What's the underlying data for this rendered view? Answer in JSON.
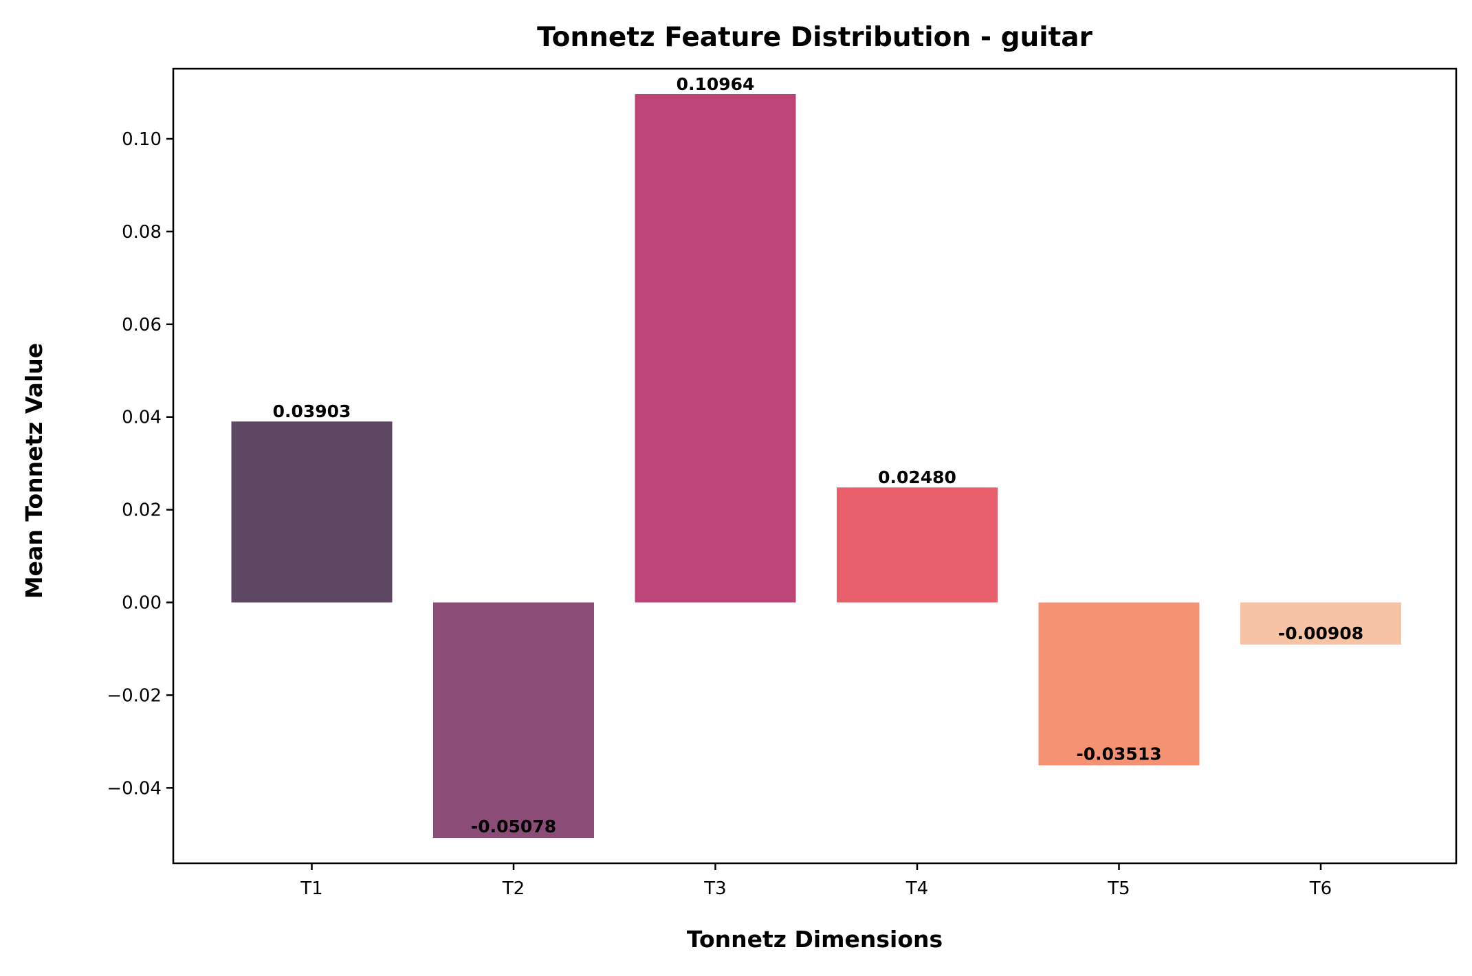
{
  "chart_data": {
    "type": "bar",
    "title": "Tonnetz Feature Distribution - guitar",
    "xlabel": "Tonnetz Dimensions",
    "ylabel": "Mean Tonnetz Value",
    "categories": [
      "T1",
      "T2",
      "T3",
      "T4",
      "T5",
      "T6"
    ],
    "values": [
      0.03903,
      -0.05078,
      0.10964,
      0.0248,
      -0.03513,
      -0.00908
    ],
    "value_labels": [
      "0.03903",
      "-0.05078",
      "0.10964",
      "0.02480",
      "-0.03513",
      "-0.00908"
    ],
    "colors": [
      "#5e4763",
      "#8b4d77",
      "#bc4476",
      "#e85e6b",
      "#f59274",
      "#f6c3a4"
    ],
    "ylim": [
      -0.05626,
      0.11512
    ],
    "yticks": [
      -0.04,
      -0.02,
      0.0,
      0.02,
      0.04,
      0.06,
      0.08,
      0.1
    ],
    "ytick_labels": [
      "−0.04",
      "−0.02",
      "0.00",
      "0.02",
      "0.04",
      "0.06",
      "0.08",
      "0.10"
    ],
    "grid": false,
    "legend": "none"
  }
}
